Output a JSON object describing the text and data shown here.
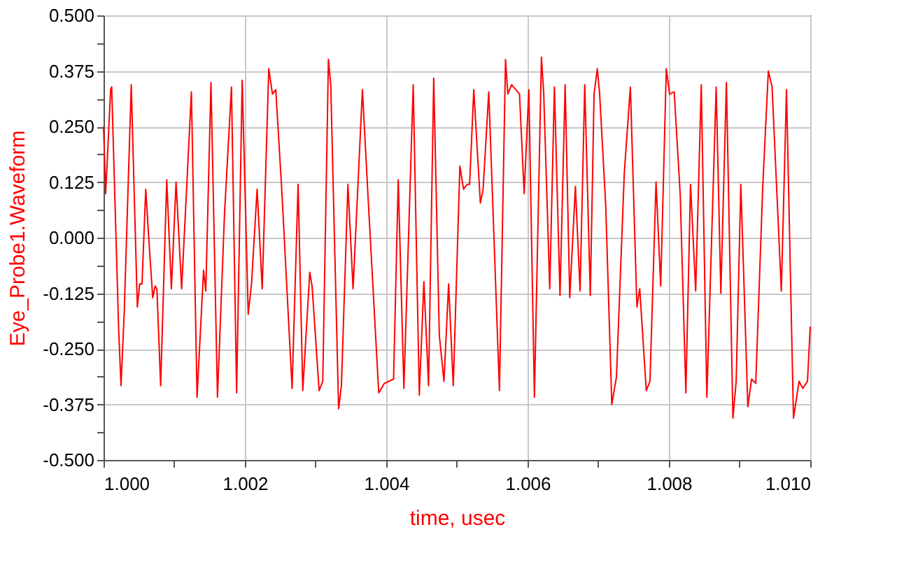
{
  "chart_data": {
    "type": "line",
    "xlabel": "time, usec",
    "ylabel": "Eye_Probe1.Waveform",
    "x": [
      1.0,
      1.00003,
      1.0001,
      1.000115,
      1.000214,
      1.000247,
      1.000293,
      1.000392,
      1.000478,
      1.000511,
      1.000544,
      1.000597,
      1.000643,
      1.000696,
      1.000729,
      1.000755,
      1.000808,
      1.000894,
      1.00096,
      1.001026,
      1.001105,
      1.001243,
      1.001323,
      1.001415,
      1.001447,
      1.00152,
      1.001612,
      1.001711,
      1.00181,
      1.001883,
      1.001962,
      1.002047,
      1.002094,
      1.002173,
      1.002245,
      1.002338,
      1.00239,
      1.002437,
      1.002523,
      1.002668,
      1.002753,
      1.002819,
      1.002918,
      1.002951,
      1.00305,
      1.003102,
      1.003182,
      1.003215,
      1.003326,
      1.003366,
      1.003458,
      1.003531,
      1.003663,
      1.003742,
      1.003894,
      1.003973,
      1.004104,
      1.00417,
      1.00425,
      1.004382,
      1.004468,
      1.004533,
      1.004599,
      1.004672,
      1.004751,
      1.004817,
      1.004883,
      1.004949,
      1.005042,
      1.005094,
      1.005147,
      1.00518,
      1.005239,
      1.005332,
      1.005371,
      1.005451,
      1.005602,
      1.005688,
      1.005721,
      1.005774,
      1.005886,
      1.005952,
      1.006018,
      1.006097,
      1.006196,
      1.006229,
      1.006314,
      1.00638,
      1.006459,
      1.006532,
      1.006597,
      1.006677,
      1.006743,
      1.006809,
      1.006888,
      1.006941,
      1.006987,
      1.00702,
      1.007106,
      1.007192,
      1.007258,
      1.007369,
      1.007455,
      1.007547,
      1.007587,
      1.00768,
      1.007732,
      1.007818,
      1.007884,
      1.007963,
      1.00801,
      1.008075,
      1.008161,
      1.00824,
      1.008306,
      1.008379,
      1.008458,
      1.008537,
      1.008669,
      1.008735,
      1.008814,
      1.008906,
      1.008952,
      1.009018,
      1.009117,
      1.00917,
      1.009229,
      1.009328,
      1.009407,
      1.00946,
      1.009591,
      1.009664,
      1.009763,
      1.009842,
      1.009895,
      1.009961,
      1.01
    ],
    "series": [
      {
        "color": "#ff0000",
        "values": [
          0.25,
          0.099,
          0.333,
          0.339,
          -0.208,
          -0.333,
          -0.167,
          0.344,
          -0.156,
          -0.104,
          -0.104,
          0.109,
          -0.01,
          -0.135,
          -0.109,
          -0.115,
          -0.333,
          0.13,
          -0.115,
          0.125,
          -0.115,
          0.328,
          -0.359,
          -0.073,
          -0.12,
          0.349,
          -0.359,
          0.052,
          0.339,
          -0.349,
          0.354,
          -0.172,
          -0.104,
          0.109,
          -0.115,
          0.38,
          0.323,
          0.333,
          0.104,
          -0.339,
          0.12,
          -0.344,
          -0.078,
          -0.109,
          -0.344,
          -0.323,
          0.401,
          0.344,
          -0.385,
          -0.333,
          0.12,
          -0.115,
          0.333,
          0.094,
          -0.349,
          -0.328,
          -0.318,
          0.13,
          -0.339,
          0.344,
          -0.354,
          -0.099,
          -0.333,
          0.359,
          -0.219,
          -0.323,
          -0.104,
          -0.333,
          0.161,
          0.109,
          0.12,
          0.12,
          0.333,
          0.078,
          0.109,
          0.328,
          -0.344,
          0.401,
          0.323,
          0.344,
          0.323,
          0.099,
          0.333,
          -0.359,
          0.406,
          0.323,
          -0.115,
          0.339,
          -0.13,
          0.344,
          -0.135,
          0.115,
          -0.12,
          0.344,
          -0.13,
          0.323,
          0.38,
          0.323,
          0.073,
          -0.375,
          -0.313,
          0.146,
          0.339,
          -0.156,
          -0.115,
          -0.344,
          -0.323,
          0.125,
          -0.109,
          0.38,
          0.323,
          0.328,
          0.094,
          -0.349,
          0.12,
          -0.12,
          0.344,
          -0.359,
          0.339,
          -0.125,
          0.349,
          -0.406,
          -0.323,
          0.12,
          -0.38,
          -0.318,
          -0.328,
          0.115,
          0.375,
          0.339,
          -0.12,
          0.333,
          -0.406,
          -0.323,
          -0.339,
          -0.323,
          -0.2
        ]
      }
    ],
    "xlim": [
      1.0,
      1.01
    ],
    "xticks": [
      {
        "value": 1.0,
        "label": "1.000"
      },
      {
        "value": 1.001,
        "label": null
      },
      {
        "value": 1.002,
        "label": "1.002"
      },
      {
        "value": 1.003,
        "label": null
      },
      {
        "value": 1.004,
        "label": "1.004"
      },
      {
        "value": 1.005,
        "label": null
      },
      {
        "value": 1.006,
        "label": "1.006"
      },
      {
        "value": 1.007,
        "label": null
      },
      {
        "value": 1.008,
        "label": "1.008"
      },
      {
        "value": 1.009,
        "label": null
      },
      {
        "value": 1.01,
        "label": "1.010"
      }
    ],
    "ylim": [
      -0.5,
      0.5
    ],
    "yticks": [
      {
        "value": -0.5,
        "label": "-0.500"
      },
      {
        "value": -0.4375,
        "label": null
      },
      {
        "value": -0.375,
        "label": "-0.375"
      },
      {
        "value": -0.3125,
        "label": null
      },
      {
        "value": -0.25,
        "label": "-0.250"
      },
      {
        "value": -0.1875,
        "label": null
      },
      {
        "value": -0.125,
        "label": "-0.125"
      },
      {
        "value": -0.0625,
        "label": null
      },
      {
        "value": 0,
        "label": "0.000"
      },
      {
        "value": 0.0625,
        "label": null
      },
      {
        "value": 0.125,
        "label": "0.125"
      },
      {
        "value": 0.1875,
        "label": null
      },
      {
        "value": 0.25,
        "label": "0.250"
      },
      {
        "value": 0.3125,
        "label": null
      },
      {
        "value": 0.375,
        "label": "0.375"
      },
      {
        "value": 0.4375,
        "label": null
      },
      {
        "value": 0.5,
        "label": "0.500"
      }
    ],
    "grid": true,
    "legend": false,
    "marker": "none",
    "line_style": "solid"
  }
}
